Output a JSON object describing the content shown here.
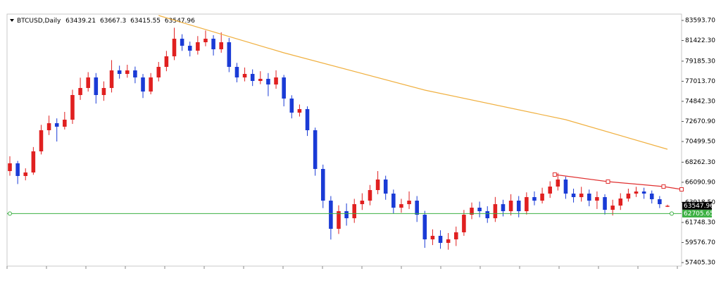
{
  "chart_data": {
    "type": "candlestick",
    "title": "BTCUSD,Daily",
    "up_color": "#e02020",
    "down_color": "#1a3bd6",
    "ylim": [
      57024.7,
      84278.7
    ],
    "xlim": [
      -0.36,
      85.8
    ],
    "yticks": [
      {
        "value": 57405.3,
        "label": "57405.30"
      },
      {
        "value": 59576.7,
        "label": "59576.70"
      },
      {
        "value": 61748.3,
        "label": "61748.30"
      },
      {
        "value": 63918.5,
        "label": "63918.50"
      },
      {
        "value": 66090.9,
        "label": "66090.90"
      },
      {
        "value": 68262.3,
        "label": "68262.30"
      },
      {
        "value": 70499.5,
        "label": "70499.50"
      },
      {
        "value": 72670.9,
        "label": "72670.90"
      },
      {
        "value": 74842.3,
        "label": "74842.30"
      },
      {
        "value": 77013.7,
        "label": "77013.70"
      },
      {
        "value": 79185.3,
        "label": "79185.30"
      },
      {
        "value": 81422.3,
        "label": "81422.30"
      },
      {
        "value": 83593.7,
        "label": "83593.70"
      }
    ],
    "open": [
      67300,
      68140,
      66770,
      67150,
      69434,
      71718,
      72479,
      72099,
      72860,
      75524,
      76286,
      77428,
      75524,
      76286,
      78189,
      77808,
      78189,
      77428,
      75905,
      77428,
      78570,
      79712,
      81615,
      80854,
      80321,
      81234,
      81615,
      80473,
      81234,
      78570,
      77428,
      77808,
      77047,
      77276,
      76666,
      77428,
      75144,
      73621,
      74002,
      71718,
      67531,
      64105,
      61060,
      62963,
      62202,
      63724,
      64105,
      65247,
      66389,
      64866,
      63344,
      63724,
      64105,
      62582,
      59918,
      60298,
      59537,
      59918,
      60679,
      62582,
      63344,
      62963,
      62202,
      63724,
      62963,
      64105,
      62963,
      64486,
      64105,
      64866,
      65627,
      66389,
      64866,
      64486,
      64866,
      64105,
      64486,
      63115,
      63570,
      64333,
      64866,
      65094,
      64866,
      64257,
      63439.21
    ],
    "high": [
      68900,
      68400,
      67600,
      69900,
      72300,
      73300,
      73000,
      73700,
      76100,
      77400,
      78000,
      77900,
      77000,
      79300,
      78700,
      78800,
      78600,
      77800,
      77900,
      79100,
      80300,
      82800,
      82100,
      81300,
      81900,
      82500,
      82000,
      82300,
      81700,
      79000,
      78500,
      78300,
      78100,
      77900,
      78200,
      77700,
      75500,
      74500,
      74300,
      72000,
      68000,
      64600,
      63600,
      63800,
      64300,
      64900,
      65800,
      67300,
      66800,
      65300,
      64300,
      65100,
      64600,
      63000,
      61000,
      60900,
      60600,
      61300,
      63100,
      63900,
      64000,
      63500,
      64500,
      64200,
      64800,
      64600,
      65000,
      65100,
      65500,
      66200,
      67100,
      66700,
      65400,
      65600,
      65300,
      65100,
      64800,
      64200,
      64900,
      65400,
      65600,
      65500,
      65200,
      64600,
      63667.3
    ],
    "low": [
      66800,
      65900,
      66300,
      66900,
      69100,
      71200,
      70500,
      71800,
      72400,
      75000,
      75900,
      74600,
      74900,
      75800,
      77300,
      77400,
      76800,
      75200,
      75600,
      77000,
      78100,
      79300,
      80300,
      79700,
      79900,
      80800,
      79800,
      80100,
      78000,
      76900,
      77000,
      76500,
      76700,
      75400,
      76200,
      74300,
      73000,
      73200,
      71100,
      66800,
      63300,
      59900,
      60500,
      61400,
      61700,
      63100,
      63600,
      64800,
      64200,
      62700,
      62800,
      63200,
      61800,
      59000,
      59300,
      58900,
      58800,
      59200,
      60300,
      62100,
      62300,
      61700,
      61800,
      62400,
      62500,
      62300,
      62600,
      63600,
      63800,
      64400,
      65200,
      64300,
      63900,
      64000,
      63500,
      63200,
      62600,
      62500,
      63100,
      64000,
      64500,
      64300,
      63800,
      63300,
      63415.55
    ],
    "close": [
      68140,
      66770,
      67150,
      69434,
      71718,
      72479,
      72099,
      72860,
      75524,
      76286,
      77428,
      75524,
      76286,
      78189,
      77808,
      78189,
      77428,
      75905,
      77428,
      78570,
      79712,
      81615,
      80854,
      80321,
      81234,
      81615,
      80473,
      81234,
      78570,
      77428,
      77808,
      77047,
      77276,
      76666,
      77428,
      75144,
      73621,
      74002,
      71718,
      67531,
      64105,
      61060,
      62963,
      62202,
      63724,
      64105,
      65247,
      66389,
      64866,
      63344,
      63724,
      64105,
      62582,
      59918,
      60298,
      59537,
      59918,
      60679,
      62582,
      63344,
      62963,
      62202,
      63724,
      62963,
      64105,
      62963,
      64486,
      64105,
      64866,
      65627,
      66389,
      64866,
      64486,
      64866,
      64105,
      64486,
      63115,
      63570,
      64333,
      64866,
      65094,
      64866,
      64257,
      63724,
      63547.96
    ],
    "lines": [
      {
        "color": "#f0b040",
        "x": [
          19,
          35,
          53,
          71,
          84
        ],
        "values": [
          84126,
          80092,
          76057,
          72859,
          69662
        ]
      },
      {
        "color": "#e03030",
        "x": [
          69.6,
          76.4,
          83.5,
          85.8
        ],
        "values": [
          66921,
          66160,
          65627,
          65322
        ]
      }
    ],
    "hline": {
      "value": 62705.65,
      "color": "#3cb043"
    }
  }
}
